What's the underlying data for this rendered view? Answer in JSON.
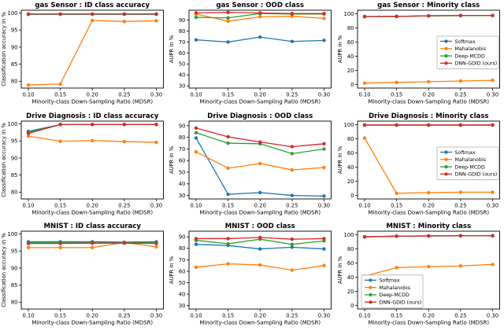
{
  "figure": {
    "background": "#ffffff",
    "x_tick_labels": [
      "0.10",
      "0.15",
      "0.20",
      "0.25",
      "0.30"
    ],
    "legend_labels": [
      "Softmax",
      "Mahalanobis",
      "Deep-MCDD",
      "DNN-GDID (ours)"
    ],
    "colors": {
      "softmax": "#1f77b4",
      "mahalanobis": "#ff7f0e",
      "deep_mcdd": "#2ca02c",
      "dnn_gdid": "#d62728"
    }
  },
  "chart_data": [
    {
      "type": "line",
      "title": "gas Sensor :  ID class accuracy",
      "xlabel": "Minority-class Down-Sampling Ratio (MDSR)",
      "ylabel": "Classification accuracy  in %",
      "x": [
        0.1,
        0.15,
        0.2,
        0.25,
        0.3
      ],
      "ylim": [
        78,
        100.8
      ],
      "yticks": [
        80,
        85,
        90,
        95,
        100
      ],
      "legend": null,
      "series": [
        {
          "name": "Softmax",
          "color": "#1f77b4",
          "values": [
            99.6,
            99.6,
            99.6,
            99.6,
            99.6
          ]
        },
        {
          "name": "Mahalanobis",
          "color": "#ff7f0e",
          "values": [
            78.9,
            79.2,
            97.8,
            97.5,
            97.7
          ]
        },
        {
          "name": "Deep-MCDD",
          "color": "#2ca02c",
          "values": [
            99.65,
            99.65,
            99.65,
            99.65,
            99.65
          ]
        },
        {
          "name": "DNN-GDID (ours)",
          "color": "#d62728",
          "values": [
            99.7,
            99.7,
            99.7,
            99.7,
            99.7
          ]
        }
      ]
    },
    {
      "type": "line",
      "title": "gas Sensor :  OOD class",
      "xlabel": "Minority-class Down-Sampling Ratio (MDSR)",
      "ylabel": "AUPR in %",
      "x": [
        0.1,
        0.15,
        0.2,
        0.25,
        0.3
      ],
      "ylim": [
        28,
        99
      ],
      "yticks": [
        30,
        40,
        50,
        60,
        70,
        80,
        90
      ],
      "legend": null,
      "series": [
        {
          "name": "Softmax",
          "color": "#1f77b4",
          "values": [
            72,
            70,
            74.5,
            70.5,
            71.5
          ]
        },
        {
          "name": "Mahalanobis",
          "color": "#ff7f0e",
          "values": [
            95.5,
            89,
            93,
            93.5,
            91.5
          ]
        },
        {
          "name": "Deep-MCDD",
          "color": "#2ca02c",
          "values": [
            92.5,
            92,
            96,
            95.5,
            95.5
          ]
        },
        {
          "name": "DNN-GDID (ours)",
          "color": "#d62728",
          "values": [
            96.5,
            97,
            96.5,
            96,
            96
          ]
        }
      ]
    },
    {
      "type": "line",
      "title": "gas Sensor :  Minority class",
      "xlabel": "Minority-class Down-Sampling Ratio (MDSR)",
      "ylabel": "AUPR in %",
      "x": [
        0.1,
        0.15,
        0.2,
        0.25,
        0.3
      ],
      "ylim": [
        -5,
        105
      ],
      "yticks": [
        0,
        20,
        40,
        60,
        80,
        100
      ],
      "legend": "center-right",
      "series": [
        {
          "name": "Softmax",
          "color": "#1f77b4",
          "values": [
            96,
            96.2,
            97,
            97.4,
            97.5
          ]
        },
        {
          "name": "Mahalanobis",
          "color": "#ff7f0e",
          "values": [
            2,
            3,
            4,
            5,
            6
          ]
        },
        {
          "name": "Deep-MCDD",
          "color": "#2ca02c",
          "values": [
            96,
            96.2,
            97,
            97.4,
            97.5
          ]
        },
        {
          "name": "DNN-GDID (ours)",
          "color": "#d62728",
          "values": [
            96.1,
            96.3,
            97.2,
            97.6,
            97.6
          ]
        }
      ]
    },
    {
      "type": "line",
      "title": "Drive Diagnosis :  ID class accuracy",
      "xlabel": "Minority-class Down-Sampling Ratio (MDSR)",
      "ylabel": "Classification accuracy  in %",
      "x": [
        0.1,
        0.15,
        0.2,
        0.25,
        0.3
      ],
      "ylim": [
        78,
        100.8
      ],
      "yticks": [
        80,
        85,
        90,
        95,
        100
      ],
      "legend": null,
      "series": [
        {
          "name": "Softmax",
          "color": "#1f77b4",
          "values": [
            97.8,
            99.8,
            99.8,
            99.8,
            99.8
          ]
        },
        {
          "name": "Mahalanobis",
          "color": "#ff7f0e",
          "values": [
            96.4,
            94.9,
            95.1,
            94.8,
            94.6
          ]
        },
        {
          "name": "Deep-MCDD",
          "color": "#2ca02c",
          "values": [
            97.5,
            99.8,
            99.8,
            99.8,
            99.8
          ]
        },
        {
          "name": "DNN-GDID (ours)",
          "color": "#d62728",
          "values": [
            97.2,
            99.8,
            99.8,
            99.8,
            99.8
          ]
        }
      ]
    },
    {
      "type": "line",
      "title": "Drive Diagnosis :  OOD class",
      "xlabel": "Minority-class Down-Sampling Ratio (MDSR)",
      "ylabel": "AUPR in %",
      "x": [
        0.1,
        0.15,
        0.2,
        0.25,
        0.3
      ],
      "ylim": [
        27,
        94
      ],
      "yticks": [
        30,
        40,
        50,
        60,
        70,
        80,
        90
      ],
      "legend": null,
      "series": [
        {
          "name": "Softmax",
          "color": "#1f77b4",
          "values": [
            79.5,
            31,
            32.5,
            30,
            29.5
          ]
        },
        {
          "name": "Mahalanobis",
          "color": "#ff7f0e",
          "values": [
            67.5,
            53.5,
            57.5,
            52,
            54
          ]
        },
        {
          "name": "Deep-MCDD",
          "color": "#2ca02c",
          "values": [
            84,
            75,
            74.5,
            66,
            70
          ]
        },
        {
          "name": "DNN-GDID (ours)",
          "color": "#d62728",
          "values": [
            88,
            80.5,
            76,
            72,
            74.5
          ]
        }
      ]
    },
    {
      "type": "line",
      "title": "Drive Diagnosis :  Minority class",
      "xlabel": "Minority-class Down-Sampling Ratio (MDSR)",
      "ylabel": "AUPR in %",
      "x": [
        0.1,
        0.15,
        0.2,
        0.25,
        0.3
      ],
      "ylim": [
        -5,
        105
      ],
      "yticks": [
        0,
        20,
        40,
        60,
        80,
        100
      ],
      "legend": "center-right",
      "series": [
        {
          "name": "Softmax",
          "color": "#1f77b4",
          "values": [
            99.3,
            99.3,
            99.3,
            99.3,
            99.3
          ]
        },
        {
          "name": "Mahalanobis",
          "color": "#ff7f0e",
          "values": [
            81,
            3,
            4,
            4.5,
            4.5
          ]
        },
        {
          "name": "Deep-MCDD",
          "color": "#2ca02c",
          "values": [
            99.4,
            99.4,
            99.4,
            99.4,
            99.4
          ]
        },
        {
          "name": "DNN-GDID (ours)",
          "color": "#d62728",
          "values": [
            99.5,
            99.5,
            99.5,
            99.5,
            99.5
          ]
        }
      ]
    },
    {
      "type": "line",
      "title": "MNIST :  ID class accuracy",
      "xlabel": "Minority-class Down-Sampling Ratio (MDSR)",
      "ylabel": "Classification accuracy  in %",
      "x": [
        0.1,
        0.15,
        0.2,
        0.25,
        0.3
      ],
      "ylim": [
        78,
        100.8
      ],
      "yticks": [
        80,
        85,
        90,
        95,
        100
      ],
      "legend": null,
      "series": [
        {
          "name": "Softmax",
          "color": "#1f77b4",
          "values": [
            97.7,
            97.7,
            97.7,
            97.6,
            97.7
          ]
        },
        {
          "name": "Mahalanobis",
          "color": "#ff7f0e",
          "values": [
            96,
            96,
            96,
            97.5,
            96.2
          ]
        },
        {
          "name": "Deep-MCDD",
          "color": "#2ca02c",
          "values": [
            97.4,
            97.4,
            97.4,
            97.4,
            97.4
          ]
        },
        {
          "name": "DNN-GDID (ours)",
          "color": "#d62728",
          "values": [
            97.2,
            97.2,
            97.3,
            97.3,
            97.2
          ]
        }
      ]
    },
    {
      "type": "line",
      "title": "MNIST :  OOD class",
      "xlabel": "Minority-class Down-Sampling Ratio (MDSR)",
      "ylabel": "AUPR in %",
      "x": [
        0.1,
        0.15,
        0.2,
        0.25,
        0.3
      ],
      "ylim": [
        27,
        95
      ],
      "yticks": [
        30,
        40,
        50,
        60,
        70,
        80,
        90
      ],
      "legend": null,
      "series": [
        {
          "name": "Softmax",
          "color": "#1f77b4",
          "values": [
            83.5,
            82.5,
            79.5,
            81,
            79.5
          ]
        },
        {
          "name": "Mahalanobis",
          "color": "#ff7f0e",
          "values": [
            63.5,
            66.5,
            65.5,
            61,
            65
          ]
        },
        {
          "name": "Deep-MCDD",
          "color": "#2ca02c",
          "values": [
            87,
            84,
            88,
            83.5,
            86.5
          ]
        },
        {
          "name": "DNN-GDID (ours)",
          "color": "#d62728",
          "values": [
            88.5,
            88.5,
            89.5,
            88,
            88.5
          ]
        }
      ]
    },
    {
      "type": "line",
      "title": "MNIST :  Minority class",
      "xlabel": "Minority-class Down-Sampling Ratio (MDSR)",
      "ylabel": "AUPR in %",
      "x": [
        0.1,
        0.15,
        0.2,
        0.25,
        0.3
      ],
      "ylim": [
        -5,
        105
      ],
      "yticks": [
        0,
        20,
        40,
        60,
        80,
        100
      ],
      "legend": "lower-left",
      "series": [
        {
          "name": "Softmax",
          "color": "#1f77b4",
          "values": [
            97,
            98,
            98.3,
            98.5,
            98.5
          ]
        },
        {
          "name": "Mahalanobis",
          "color": "#ff7f0e",
          "values": [
            41.5,
            53.5,
            55,
            56,
            58
          ]
        },
        {
          "name": "Deep-MCDD",
          "color": "#2ca02c",
          "values": [
            97,
            98,
            98.3,
            98.5,
            98.5
          ]
        },
        {
          "name": "DNN-GDID (ours)",
          "color": "#d62728",
          "values": [
            97,
            98,
            98.4,
            98.6,
            98.6
          ]
        }
      ]
    }
  ]
}
